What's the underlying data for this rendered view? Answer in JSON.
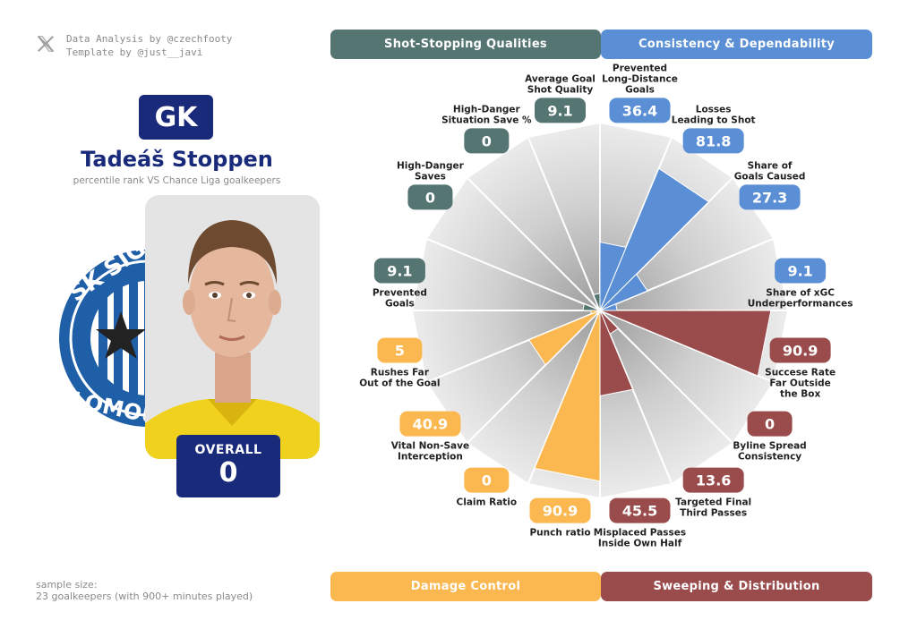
{
  "credits": {
    "line1": "Data Analysis by @czechfooty",
    "line2": "Template by @just__javi",
    "icon": "x-logo-icon"
  },
  "player": {
    "position": "GK",
    "name": "Tadeáš Stoppen",
    "subtitle": "percentile rank VS Chance Liga goalkeepers",
    "overall_label": "OVERALL",
    "overall_value": "0",
    "club_logo_text": "SK SIGMA OLOMOUC"
  },
  "sample": {
    "line1": "sample size:",
    "line2": "23 goalkeepers (with 900+ minutes played)"
  },
  "categories": [
    {
      "name": "Shot-Stopping Qualities",
      "color": "#557572"
    },
    {
      "name": "Consistency & Dependability",
      "color": "#5a8fd6"
    },
    {
      "name": "Damage Control",
      "color": "#fbb850"
    },
    {
      "name": "Sweeping & Distribution",
      "color": "#9a4b4b"
    }
  ],
  "chart_data": {
    "type": "radial-bar",
    "title": "",
    "rlim": [
      0,
      100
    ],
    "metrics": [
      {
        "label": "Prevented\nLong-Distance\nGoals",
        "value": 36.4,
        "category": "Consistency & Dependability",
        "color": "#5a8fd6"
      },
      {
        "label": "Losses\nLeading to Shot",
        "value": 81.8,
        "category": "Consistency & Dependability",
        "color": "#5a8fd6"
      },
      {
        "label": "Share of\nGoals Caused",
        "value": 27.3,
        "category": "Consistency & Dependability",
        "color": "#5a8fd6"
      },
      {
        "label": "Share of xGC\nUnderperformances",
        "value": 9.1,
        "category": "Consistency & Dependability",
        "color": "#5a8fd6"
      },
      {
        "label": "Succese Rate\nFar Outside\nthe Box",
        "value": 90.9,
        "category": "Sweeping & Distribution",
        "color": "#9a4b4b"
      },
      {
        "label": "Byline Spread\nConsistency",
        "value": 0,
        "category": "Sweeping & Distribution",
        "color": "#9a4b4b"
      },
      {
        "label": "Targeted Final\nThird Passes",
        "value": 13.6,
        "category": "Sweeping & Distribution",
        "color": "#9a4b4b"
      },
      {
        "label": "Misplaced Passes\nInside Own Half",
        "value": 45.5,
        "category": "Sweeping & Distribution",
        "color": "#9a4b4b"
      },
      {
        "label": "Punch ratio",
        "value": 90.9,
        "category": "Damage Control",
        "color": "#fbb850"
      },
      {
        "label": "Claim Ratio",
        "value": 0,
        "category": "Damage Control",
        "color": "#fbb850"
      },
      {
        "label": "Vital Non-Save\nInterception",
        "value": 40.9,
        "category": "Damage Control",
        "color": "#fbb850"
      },
      {
        "label": "Rushes Far\nOut of the Goal",
        "value": 5,
        "category": "Damage Control",
        "color": "#fbb850"
      },
      {
        "label": "Prevented\nGoals",
        "value": 9.1,
        "category": "Shot-Stopping Qualities",
        "color": "#557572"
      },
      {
        "label": "High-Danger\nSaves",
        "value": 0,
        "category": "Shot-Stopping Qualities",
        "color": "#557572"
      },
      {
        "label": "High-Danger\nSituation Save %",
        "value": 0,
        "category": "Shot-Stopping Qualities",
        "color": "#557572"
      },
      {
        "label": "Average Goal\nShot Quality",
        "value": 9.1,
        "category": "Shot-Stopping Qualities",
        "color": "#557572"
      }
    ]
  }
}
